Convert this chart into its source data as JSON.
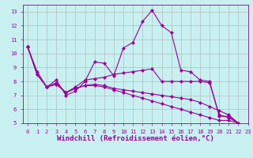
{
  "xlabel": "Windchill (Refroidissement éolien,°C)",
  "bg_color": "#c8f0f0",
  "line_color": "#990099",
  "grid_color": "#b0b0b0",
  "xlim": [
    -0.5,
    23
  ],
  "ylim": [
    5,
    13.5
  ],
  "yticks": [
    5,
    6,
    7,
    8,
    9,
    10,
    11,
    12,
    13
  ],
  "xticks": [
    0,
    1,
    2,
    3,
    4,
    5,
    6,
    7,
    8,
    9,
    10,
    11,
    12,
    13,
    14,
    15,
    16,
    17,
    18,
    19,
    20,
    21,
    22,
    23
  ],
  "series": [
    [
      10.5,
      8.7,
      7.6,
      8.1,
      7.0,
      7.3,
      8.0,
      9.4,
      9.3,
      8.4,
      10.4,
      10.8,
      12.3,
      13.1,
      12.0,
      11.5,
      8.8,
      8.7,
      8.1,
      8.0,
      5.5,
      5.5,
      5.0
    ],
    [
      10.5,
      8.5,
      7.6,
      7.9,
      7.2,
      7.6,
      8.1,
      8.2,
      8.3,
      8.5,
      8.6,
      8.7,
      8.8,
      8.9,
      8.0,
      8.0,
      8.0,
      8.0,
      8.0,
      7.9,
      5.6,
      5.4,
      5.0
    ],
    [
      10.5,
      8.5,
      7.6,
      7.8,
      7.2,
      7.5,
      7.7,
      7.8,
      7.7,
      7.5,
      7.4,
      7.3,
      7.2,
      7.1,
      7.0,
      6.9,
      6.8,
      6.7,
      6.5,
      6.2,
      5.9,
      5.6,
      5.0
    ],
    [
      10.5,
      8.5,
      7.6,
      7.8,
      7.2,
      7.5,
      7.7,
      7.7,
      7.6,
      7.4,
      7.2,
      7.0,
      6.8,
      6.6,
      6.4,
      6.2,
      6.0,
      5.8,
      5.6,
      5.4,
      5.2,
      5.2,
      5.0
    ]
  ],
  "marker": "D",
  "markersize": 2,
  "linewidth": 0.8,
  "tick_fontsize": 5,
  "xlabel_fontsize": 6.5
}
